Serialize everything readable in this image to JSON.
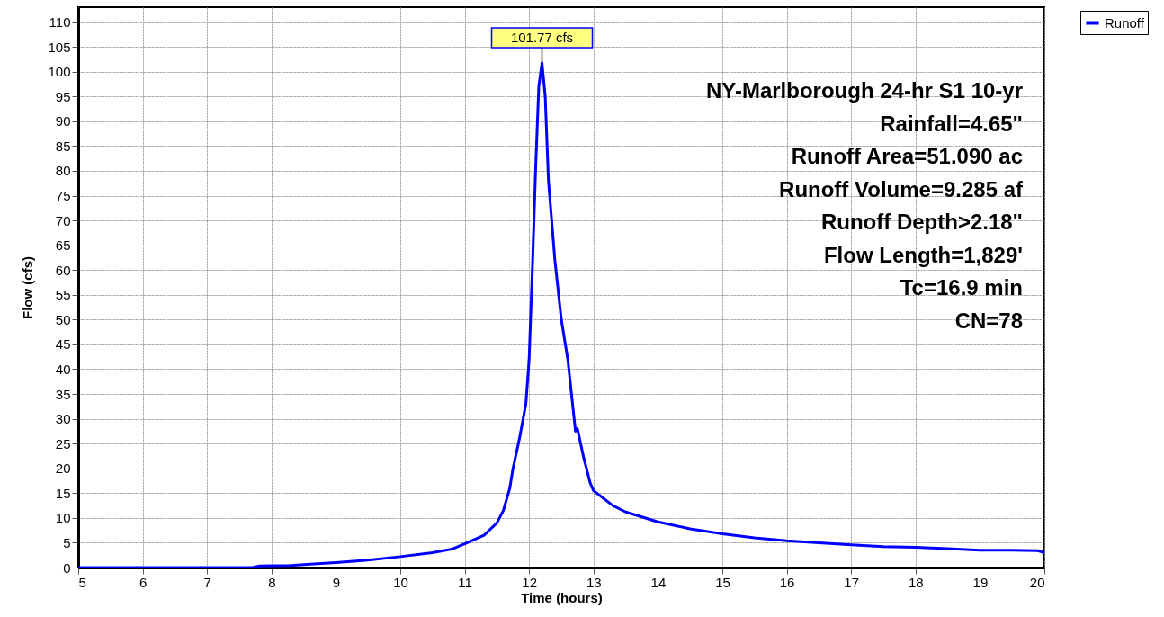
{
  "chart_data": {
    "type": "line",
    "xlabel": "Time  (hours)",
    "ylabel": "Flow  (cfs)",
    "x": [
      5,
      6,
      7,
      7.7,
      7.8,
      8.3,
      8.6,
      9,
      9.5,
      10,
      10.5,
      10.8,
      11,
      11.3,
      11.5,
      11.6,
      11.7,
      11.75,
      11.85,
      11.95,
      12.0,
      12.05,
      12.1,
      12.15,
      12.2,
      12.25,
      12.3,
      12.4,
      12.5,
      12.6,
      12.72,
      12.75,
      12.85,
      12.95,
      13.0,
      13.3,
      13.5,
      14,
      14.5,
      15,
      15.5,
      16,
      16.5,
      17,
      17.5,
      18,
      18.5,
      19,
      19.5,
      19.9,
      20
    ],
    "series": [
      {
        "name": "Runoff",
        "color": "#0000ff",
        "values": [
          0,
          0,
          0,
          0,
          0.3,
          0.4,
          0.7,
          1.0,
          1.5,
          2.2,
          3.0,
          3.7,
          4.8,
          6.5,
          9,
          11.5,
          16,
          20,
          26,
          33,
          42,
          60,
          80,
          97,
          101.77,
          95,
          78,
          62,
          50,
          42,
          27.5,
          28,
          22,
          17,
          15.5,
          12.5,
          11.2,
          9.2,
          7.8,
          6.8,
          6.0,
          5.4,
          5.0,
          4.6,
          4.2,
          4.1,
          3.8,
          3.5,
          3.5,
          3.4,
          3.0
        ]
      }
    ],
    "xlim": [
      5,
      20
    ],
    "ylim": [
      0,
      113
    ],
    "xticks": [
      5,
      6,
      7,
      8,
      9,
      10,
      11,
      12,
      13,
      14,
      15,
      16,
      17,
      18,
      19,
      20
    ],
    "yticks": [
      0,
      5,
      10,
      15,
      20,
      25,
      30,
      35,
      40,
      45,
      50,
      55,
      60,
      65,
      70,
      75,
      80,
      85,
      90,
      95,
      100,
      105,
      110
    ],
    "grid": true,
    "legend": "top right",
    "marker": "none",
    "line_style": "solid",
    "annotations": [
      {
        "text": "101.77 cfs",
        "x": 12.2,
        "y": 101.77
      },
      "NY-Marlborough 24-hr S1 10-yr",
      "Rainfall=4.65\"",
      "Runoff Area=51.090 ac",
      "Runoff Volume=9.285 af",
      "Runoff Depth>2.18\"",
      "Flow Length=1,829'",
      "Tc=16.9 min",
      "CN=78"
    ]
  }
}
